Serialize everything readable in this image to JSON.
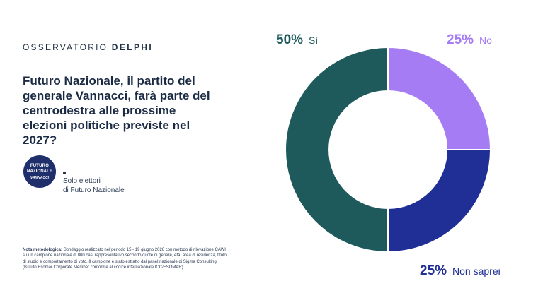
{
  "header": {
    "brand_light": "OSSERVATORIO",
    "brand_bold": "DELPHI"
  },
  "question": "Futuro Nazionale, il partito del generale Vannacci, farà parte del centrodestra alle prossime elezioni politiche previste nel 2027?",
  "logo": {
    "line1": "FUTURO",
    "line2": "NAZIONALE",
    "line3": "VANNACCI"
  },
  "filter": {
    "line1": "Solo elettori",
    "line2": "di Futuro Nazionale"
  },
  "note": {
    "label": "Nota metodologica",
    "text": "Sondaggio realizzato nel periodo 15 - 19 giugno 2026 con metodo di rilevazione CAWI su un campione nazionale di 800 casi rappresentativo secondo quote di genere, età, area di residenza, titolo di studio e comportamento di voto. Il campione è stato estratto dal panel nazionale di Sigma Consulting (Istituto Esomar Corporate Member conforme al codice internazionale ICC/ESOMAR)."
  },
  "chart_data": {
    "type": "pie",
    "categories": [
      "Sì",
      "No",
      "Non saprei"
    ],
    "values": [
      50,
      25,
      25
    ],
    "labels": [
      "50%",
      "25%",
      "25%"
    ],
    "colors": [
      "#1e5a5c",
      "#a57cf4",
      "#1f2f95"
    ],
    "label_colors": [
      "#1e5a5c",
      "#a57cf4",
      "#1f2f95"
    ],
    "title": ""
  }
}
